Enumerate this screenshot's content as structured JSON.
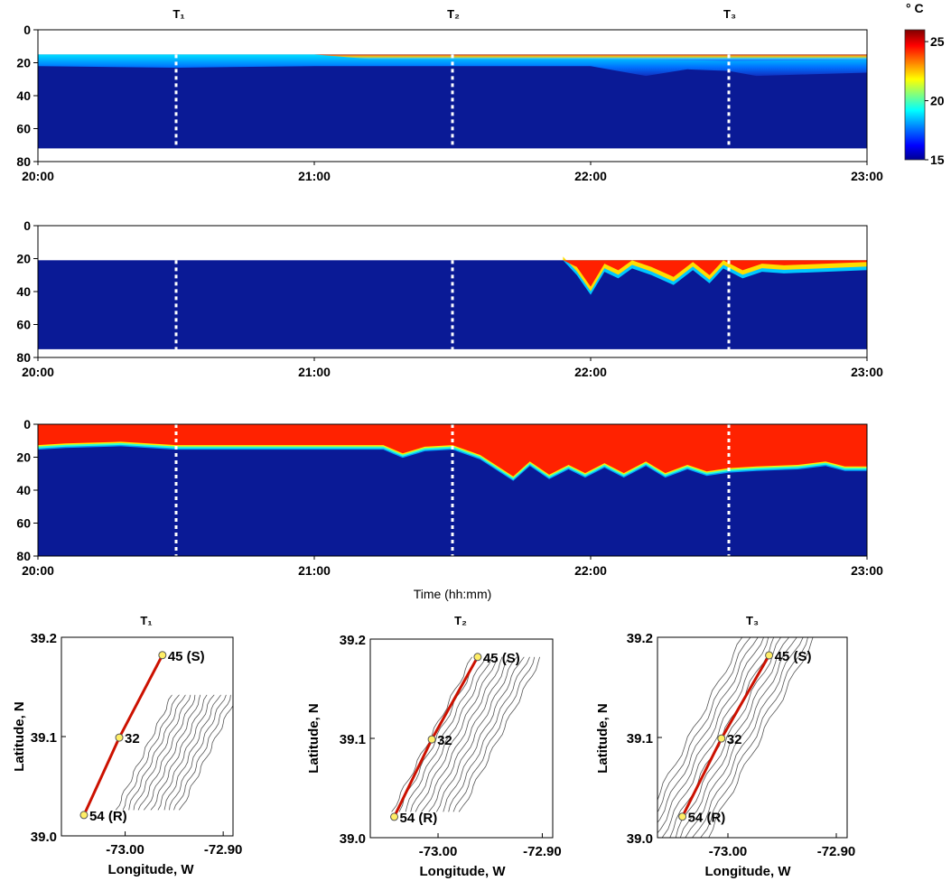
{
  "chart_data": [
    {
      "type": "heatmap",
      "panel": "top",
      "x_ticks": [
        "20:00",
        "21:00",
        "22:00",
        "23:00"
      ],
      "x_range_hours": [
        20,
        23
      ],
      "y_ticks": [
        "0",
        "20",
        "40",
        "60",
        "80"
      ],
      "ylim": [
        80,
        0
      ],
      "data_depth_range": [
        15,
        72
      ],
      "transect_times_hours": [
        20.5,
        21.5,
        22.5
      ],
      "transect_labels": [
        "T₁",
        "T₂",
        "T₃"
      ],
      "surface_layer_temp_c": 16.5,
      "deep_temp_c": 15,
      "interface_depth": [
        {
          "t": 20.0,
          "d": 22
        },
        {
          "t": 20.5,
          "d": 23
        },
        {
          "t": 21.0,
          "d": 22
        },
        {
          "t": 21.5,
          "d": 22
        },
        {
          "t": 22.0,
          "d": 22
        },
        {
          "t": 22.2,
          "d": 28
        },
        {
          "t": 22.35,
          "d": 24
        },
        {
          "t": 22.5,
          "d": 25
        },
        {
          "t": 22.6,
          "d": 28
        },
        {
          "t": 22.8,
          "d": 27
        },
        {
          "t": 23.0,
          "d": 26
        }
      ],
      "warm_cap": [
        {
          "t": 20.0,
          "d": 0
        },
        {
          "t": 21.0,
          "d": 0
        },
        {
          "t": 21.2,
          "d": 5
        },
        {
          "t": 21.5,
          "d": 5
        },
        {
          "t": 22.0,
          "d": 5
        },
        {
          "t": 22.5,
          "d": 7
        },
        {
          "t": 23.0,
          "d": 6
        }
      ]
    },
    {
      "type": "heatmap",
      "panel": "middle",
      "x_ticks": [
        "20:00",
        "21:00",
        "22:00",
        "23:00"
      ],
      "x_range_hours": [
        20,
        23
      ],
      "y_ticks": [
        "0",
        "20",
        "40",
        "60",
        "80"
      ],
      "ylim": [
        80,
        0
      ],
      "data_depth_range": [
        21,
        75
      ],
      "transect_times_hours": [
        20.5,
        21.5,
        22.5
      ],
      "deep_temp_c": 15,
      "warm_intrusion_depth": [
        {
          "t": 21.9,
          "d": 21
        },
        {
          "t": 21.95,
          "d": 30
        },
        {
          "t": 22.0,
          "d": 42
        },
        {
          "t": 22.05,
          "d": 28
        },
        {
          "t": 22.1,
          "d": 32
        },
        {
          "t": 22.15,
          "d": 26
        },
        {
          "t": 22.22,
          "d": 30
        },
        {
          "t": 22.3,
          "d": 36
        },
        {
          "t": 22.37,
          "d": 27
        },
        {
          "t": 22.43,
          "d": 35
        },
        {
          "t": 22.48,
          "d": 26
        },
        {
          "t": 22.55,
          "d": 32
        },
        {
          "t": 22.62,
          "d": 28
        },
        {
          "t": 22.7,
          "d": 29
        },
        {
          "t": 22.85,
          "d": 28
        },
        {
          "t": 23.0,
          "d": 27
        }
      ]
    },
    {
      "type": "heatmap",
      "panel": "bottom",
      "x_ticks": [
        "20:00",
        "21:00",
        "22:00",
        "23:00"
      ],
      "x_range_hours": [
        20,
        23
      ],
      "y_ticks": [
        "0",
        "20",
        "40",
        "60",
        "80"
      ],
      "ylim": [
        80,
        0
      ],
      "data_depth_range": [
        0,
        80
      ],
      "xlabel": "Time (hh:mm)",
      "transect_times_hours": [
        20.5,
        21.5,
        22.5
      ],
      "surface_temp_c": 25,
      "deep_temp_c": 15,
      "thermocline_depth": [
        {
          "t": 20.0,
          "d": 14
        },
        {
          "t": 20.1,
          "d": 13
        },
        {
          "t": 20.3,
          "d": 12
        },
        {
          "t": 20.5,
          "d": 14
        },
        {
          "t": 21.0,
          "d": 14
        },
        {
          "t": 21.25,
          "d": 14
        },
        {
          "t": 21.32,
          "d": 19
        },
        {
          "t": 21.4,
          "d": 15
        },
        {
          "t": 21.5,
          "d": 14
        },
        {
          "t": 21.6,
          "d": 20
        },
        {
          "t": 21.72,
          "d": 33
        },
        {
          "t": 21.78,
          "d": 24
        },
        {
          "t": 21.85,
          "d": 32
        },
        {
          "t": 21.92,
          "d": 26
        },
        {
          "t": 21.98,
          "d": 31
        },
        {
          "t": 22.05,
          "d": 25
        },
        {
          "t": 22.12,
          "d": 31
        },
        {
          "t": 22.2,
          "d": 24
        },
        {
          "t": 22.27,
          "d": 31
        },
        {
          "t": 22.35,
          "d": 26
        },
        {
          "t": 22.42,
          "d": 30
        },
        {
          "t": 22.5,
          "d": 28
        },
        {
          "t": 22.6,
          "d": 27
        },
        {
          "t": 22.75,
          "d": 26
        },
        {
          "t": 22.85,
          "d": 24
        },
        {
          "t": 22.92,
          "d": 27
        },
        {
          "t": 23.0,
          "d": 27
        }
      ]
    },
    {
      "type": "map",
      "title": "T₁",
      "xlabel": "Longitude, W",
      "ylabel": "Latitude, N",
      "xlim": [
        -73.065,
        -72.89
      ],
      "ylim": [
        39.0,
        39.2
      ],
      "x_ticks": [
        {
          "value": -73.0,
          "label": "-73.00"
        },
        {
          "value": -72.9,
          "label": "-72.90"
        }
      ],
      "y_ticks": [
        {
          "value": 39.0,
          "label": "39.0"
        },
        {
          "value": 39.1,
          "label": "39.1"
        },
        {
          "value": 39.2,
          "label": "39.2"
        }
      ],
      "stations": [
        {
          "label": "45 (S)",
          "lon": -72.962,
          "lat": 39.182
        },
        {
          "label": "32",
          "lon": -73.006,
          "lat": 39.099
        },
        {
          "label": "54 (R)",
          "lon": -73.042,
          "lat": 39.021
        }
      ],
      "hatch_band_offset": 0.063
    },
    {
      "type": "map",
      "title": "T₂",
      "xlabel": "Longitude, W",
      "ylabel": "Latitude, N",
      "xlim": [
        -73.065,
        -72.89
      ],
      "ylim": [
        39.0,
        39.2
      ],
      "x_ticks": [
        {
          "value": -73.0,
          "label": "-73.00"
        },
        {
          "value": -72.9,
          "label": "-72.90"
        }
      ],
      "y_ticks": [
        {
          "value": 39.0,
          "label": "39.0"
        },
        {
          "value": 39.1,
          "label": "39.1"
        },
        {
          "value": 39.2,
          "label": "39.2"
        }
      ],
      "stations": [
        {
          "label": "45 (S)",
          "lon": -72.962,
          "lat": 39.182
        },
        {
          "label": "32",
          "lon": -73.006,
          "lat": 39.099
        },
        {
          "label": "54 (R)",
          "lon": -73.042,
          "lat": 39.021
        }
      ],
      "hatch_band_offset": 0.028
    },
    {
      "type": "map",
      "title": "T₃",
      "xlabel": "Longitude, W",
      "ylabel": "Latitude, N",
      "xlim": [
        -73.065,
        -72.89
      ],
      "ylim": [
        39.0,
        39.2
      ],
      "x_ticks": [
        {
          "value": -73.0,
          "label": "-73.00"
        },
        {
          "value": -72.9,
          "label": "-72.90"
        }
      ],
      "y_ticks": [
        {
          "value": 39.0,
          "label": "39.0"
        },
        {
          "value": 39.1,
          "label": "39.1"
        },
        {
          "value": 39.2,
          "label": "39.2"
        }
      ],
      "stations": [
        {
          "label": "45 (S)",
          "lon": -72.962,
          "lat": 39.182
        },
        {
          "label": "32",
          "lon": -73.006,
          "lat": 39.099
        },
        {
          "label": "54 (R)",
          "lon": -73.042,
          "lat": 39.021
        }
      ],
      "hatch_band_offset": 0.0
    }
  ],
  "colorbar": {
    "unit": "° C",
    "vmin": 15,
    "vmax": 26,
    "ticks": [
      {
        "value": 25,
        "label": "25"
      },
      {
        "value": 20,
        "label": "20"
      },
      {
        "value": 15,
        "label": "15"
      }
    ],
    "colors": [
      "#00008f",
      "#0000ff",
      "#0080ff",
      "#00ffff",
      "#80ff80",
      "#ffff00",
      "#ff8000",
      "#ff0000",
      "#800000"
    ]
  },
  "colors": {
    "deep": "#0a1a96",
    "track": "#cc1100",
    "station_fill": "#ffee66",
    "hatch": "#555555",
    "transect_line": "#ffffff"
  }
}
